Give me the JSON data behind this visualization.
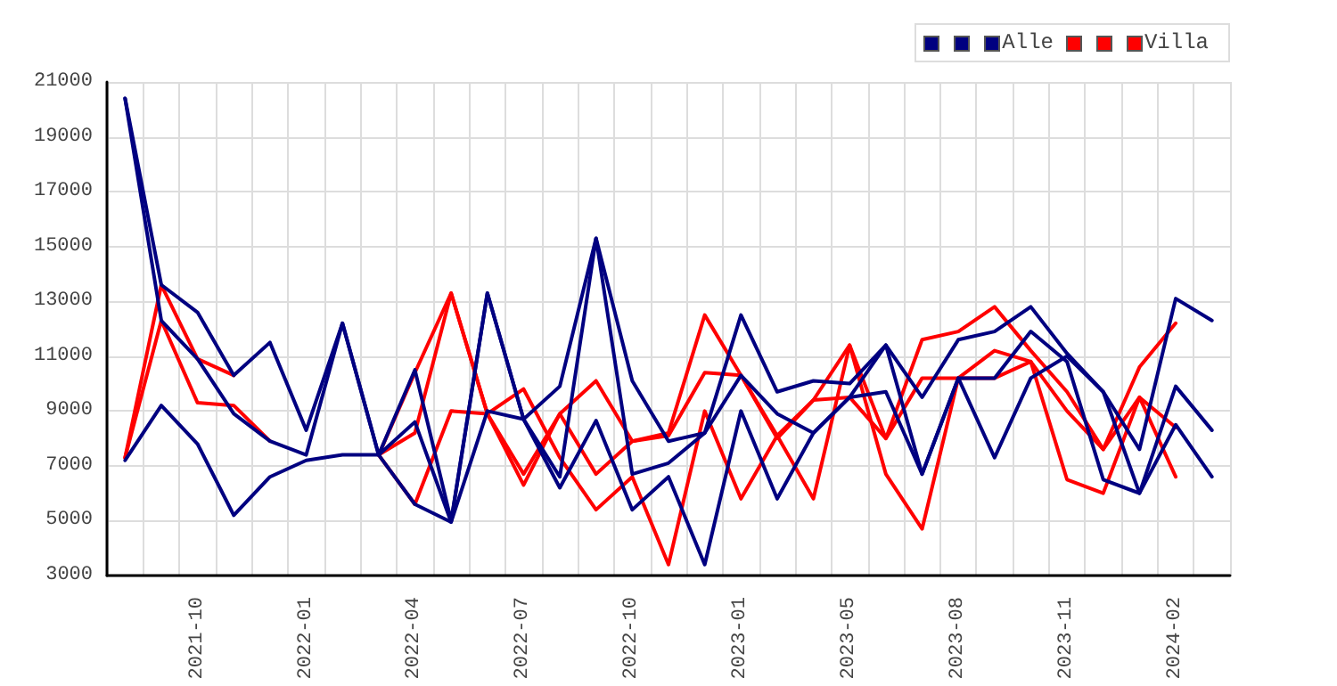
{
  "chart_data": {
    "type": "line",
    "categories": [
      null,
      null,
      "2021-10",
      null,
      null,
      "2022-01",
      null,
      null,
      "2022-04",
      null,
      null,
      "2022-07",
      null,
      null,
      "2022-10",
      null,
      null,
      "2023-01",
      null,
      null,
      "2023-05",
      null,
      null,
      "2023-08",
      null,
      null,
      "2023-11",
      null,
      null,
      "2024-02",
      null
    ],
    "series": [
      {
        "color": "#000080",
        "values": [
          20400,
          13600,
          12600,
          10300,
          11500,
          8300,
          12200,
          7400,
          10500,
          5000,
          13300,
          8700,
          9900,
          15300,
          10100,
          7900,
          8200,
          12500,
          9700,
          10100,
          10000,
          11400,
          9500,
          11600,
          11900,
          12800,
          11100,
          9700,
          7600,
          13100,
          12300
        ]
      },
      {
        "color": "#000080",
        "values": [
          20400,
          12300,
          10900,
          8900,
          7900,
          7400,
          12200,
          7400,
          5600,
          4950,
          13300,
          8700,
          6600,
          15300,
          6700,
          7100,
          8200,
          10300,
          8900,
          8200,
          9500,
          11400,
          6700,
          10200,
          10200,
          11900,
          10800,
          6500,
          6000,
          9900,
          8300
        ]
      },
      {
        "name": "Alle",
        "color": "#000080",
        "values": [
          7200,
          9200,
          7800,
          5200,
          6600,
          7200,
          7400,
          7400,
          8600,
          4950,
          9000,
          8700,
          6200,
          8650,
          5400,
          6600,
          3400,
          9000,
          5800,
          8200,
          9500,
          9700,
          6700,
          10200,
          7300,
          10200,
          11000,
          9700,
          6000,
          8500,
          6600
        ]
      },
      {
        "color": "#ff0000",
        "values": [
          7300,
          13600,
          10900,
          10300,
          null,
          null,
          null,
          7400,
          10400,
          13300,
          8900,
          6300,
          8900,
          10100,
          7900,
          8200,
          12500,
          10300,
          8100,
          9400,
          11400,
          8000,
          11600,
          11900,
          12800,
          11200,
          9700,
          7600,
          10600,
          12200,
          null
        ]
      },
      {
        "color": "#ff0000",
        "values": [
          7300,
          12300,
          9300,
          9200,
          7900,
          null,
          null,
          7400,
          8200,
          13300,
          8900,
          9800,
          7300,
          5400,
          6600,
          3400,
          9000,
          5800,
          8100,
          5800,
          11400,
          6700,
          4700,
          10200,
          10200,
          10800,
          6500,
          6000,
          9500,
          6600,
          null
        ]
      },
      {
        "name": "Villa",
        "color": "#ff0000",
        "values": [
          null,
          null,
          null,
          null,
          null,
          null,
          null,
          7400,
          5600,
          9000,
          8900,
          6700,
          8900,
          6700,
          7900,
          8100,
          10400,
          10300,
          8000,
          9400,
          9500,
          8000,
          10200,
          10200,
          11200,
          10800,
          9000,
          7600,
          9500,
          8400,
          null
        ]
      }
    ],
    "ylim": [
      3000,
      21000
    ],
    "yticks": [
      3000,
      5000,
      7000,
      9000,
      11000,
      13000,
      15000,
      17000,
      19000,
      21000
    ],
    "grid": true,
    "legend": "top right",
    "marker": "none",
    "line_style": "solid"
  }
}
